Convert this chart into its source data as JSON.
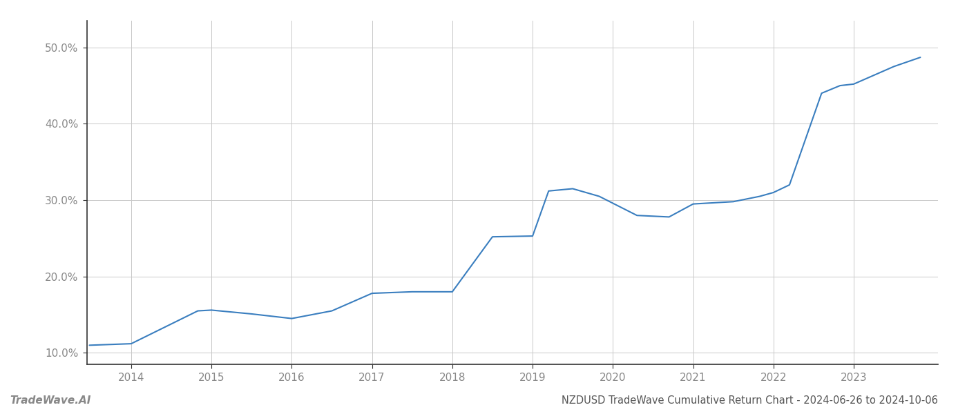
{
  "x_values": [
    2013.48,
    2014.0,
    2014.83,
    2015.0,
    2015.5,
    2016.0,
    2016.5,
    2017.0,
    2017.5,
    2018.0,
    2018.5,
    2019.0,
    2019.2,
    2019.5,
    2019.83,
    2020.3,
    2020.7,
    2021.0,
    2021.5,
    2021.83,
    2022.0,
    2022.2,
    2022.6,
    2022.83,
    2023.0,
    2023.5,
    2023.83
  ],
  "y_values": [
    11.0,
    11.2,
    15.5,
    15.6,
    15.1,
    14.5,
    15.5,
    17.8,
    18.0,
    18.0,
    25.2,
    25.3,
    31.2,
    31.5,
    30.5,
    28.0,
    27.8,
    29.5,
    29.8,
    30.5,
    31.0,
    32.0,
    44.0,
    45.0,
    45.2,
    47.5,
    48.7
  ],
  "line_color": "#3a7ebf",
  "line_width": 1.5,
  "background_color": "#ffffff",
  "grid_color": "#c8c8c8",
  "title": "NZDUSD TradeWave Cumulative Return Chart - 2024-06-26 to 2024-10-06",
  "title_fontsize": 10.5,
  "title_color": "#555555",
  "watermark_text": "TradeWave.AI",
  "watermark_fontsize": 11,
  "watermark_color": "#888888",
  "ytick_labels": [
    "10.0%",
    "20.0%",
    "30.0%",
    "40.0%",
    "50.0%"
  ],
  "ytick_values": [
    10.0,
    20.0,
    30.0,
    40.0,
    50.0
  ],
  "xtick_labels": [
    "2014",
    "2015",
    "2016",
    "2017",
    "2018",
    "2019",
    "2020",
    "2021",
    "2022",
    "2023"
  ],
  "xtick_values": [
    2014,
    2015,
    2016,
    2017,
    2018,
    2019,
    2020,
    2021,
    2022,
    2023
  ],
  "xlim": [
    2013.45,
    2024.05
  ],
  "ylim": [
    8.5,
    53.5
  ],
  "tick_fontsize": 11,
  "tick_color": "#888888",
  "left_spine_color": "#333333",
  "bottom_spine_color": "#333333"
}
